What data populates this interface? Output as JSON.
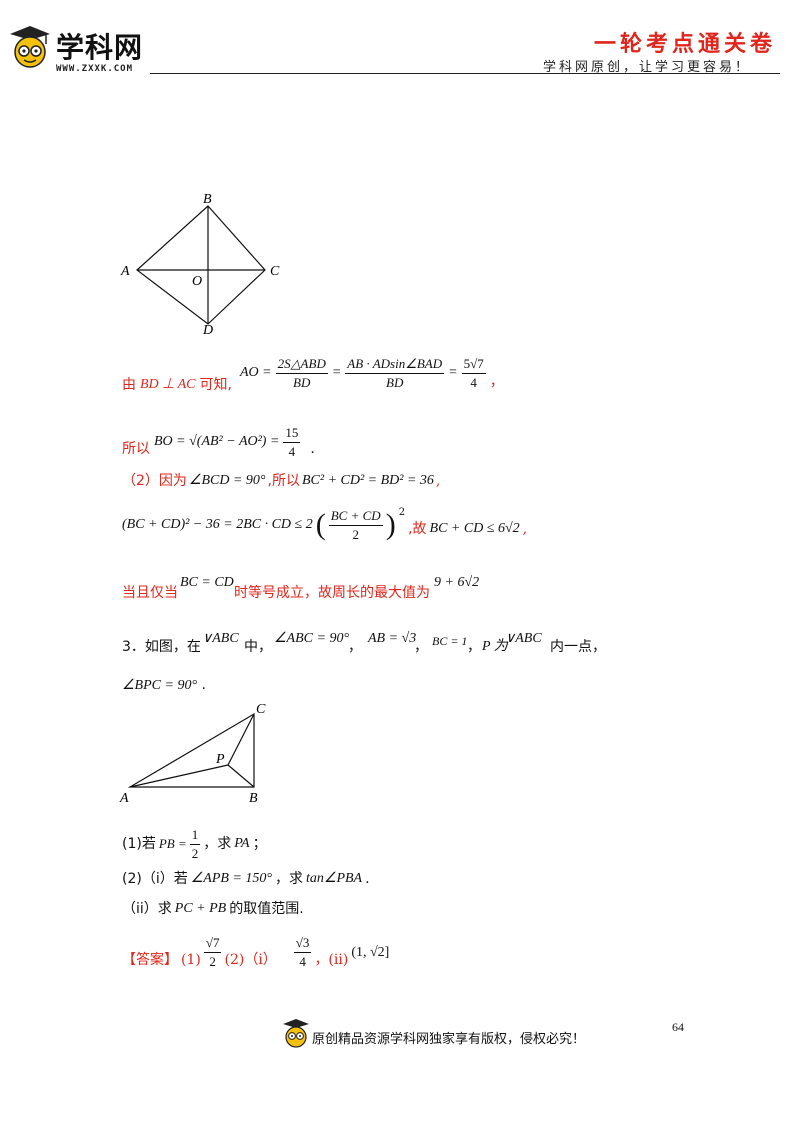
{
  "header": {
    "logo_text": "学科网",
    "logo_url": "WWW.ZXXK.COM",
    "series_title": "一轮考点通关卷",
    "slogan": "学科网原创，让学习更容易！"
  },
  "figure1": {
    "labels": {
      "a": "A",
      "b": "B",
      "c": "C",
      "d": "D",
      "o": "O"
    }
  },
  "sol": {
    "l1_prefix": "由",
    "l1_cond": "BD ⊥ AC",
    "l1_known": "可知,",
    "l1_lhs": "AO =",
    "l1_f1_num": "2S△ABD",
    "l1_f1_den": "BD",
    "l1_eq1": "=",
    "l1_f2_num": "AB · ADsin∠BAD",
    "l1_f2_den": "BD",
    "l1_eq2": "=",
    "l1_f3_num": "5√7",
    "l1_f3_den": "4",
    "l1_end": "，",
    "l2_prefix": "所以",
    "l2_expr": "BO = √(AB² − AO²) =",
    "l2_num": "15",
    "l2_den": "4",
    "l2_end": ".",
    "l3_prefix": "（2）因为",
    "l3_angle": "∠BCD = 90°",
    "l3_mid": ",所以",
    "l3_eq": "BC² + CD² = BD² = 36",
    "l3_end": ",",
    "l4_expr": "(BC + CD)² − 36 = 2BC · CD ≤ 2",
    "l4_frac_num": "BC + CD",
    "l4_frac_den": "2",
    "l4_sq": "2",
    "l4_mid": ",故",
    "l4_res": "BC + CD ≤ 6√2",
    "l4_end": ",",
    "l5_prefix": "当且仅当",
    "l5_cond": "BC = CD",
    "l5_mid": "时等号成立，故周长的最大值为",
    "l5_val": "9 + 6√2"
  },
  "q3": {
    "num": "3．如图，在",
    "tri1": "∨ABC",
    "zhong": "中，",
    "angle": "∠ABC = 90°",
    "comma1": "，",
    "ab": "AB = √3",
    "comma2": "，",
    "bc": "BC = 1",
    "comma3": "，",
    "p_is": "P 为",
    "tri2": "∨ABC",
    "inside": "内一点，",
    "bpc": "∠BPC = 90°",
    "bpc_end": "."
  },
  "figure2": {
    "labels": {
      "a": "A",
      "b": "B",
      "c": "C",
      "p": "P"
    }
  },
  "parts": {
    "p1_prefix": "(1)若",
    "p1_pb": "PB =",
    "p1_num": "1",
    "p1_den": "2",
    "p1_ask": "，求",
    "p1_pa": "PA",
    "p1_end": "；",
    "p2_prefix": "(2)（i）若",
    "p2_angle": "∠APB = 150°",
    "p2_ask": "，求",
    "p2_tan": "tan∠PBA",
    "p2_end": ".",
    "p3_prefix": "（ii）求",
    "p3_expr": "PC + PB",
    "p3_end": "的取值范围."
  },
  "answer": {
    "label": "【答案】",
    "a1": "(1)",
    "a1_num": "√7",
    "a1_den": "2",
    "a2": "(2)（i）",
    "a2_num": "√3",
    "a2_den": "4",
    "a3": "，(ii)",
    "a3_val": "(1, √2]"
  },
  "footer": {
    "page_number": "64",
    "copyright": "原创精品资源学科网独家享有版权，侵权必究！"
  },
  "colors": {
    "accent": "#e0261c",
    "text": "#111111"
  }
}
